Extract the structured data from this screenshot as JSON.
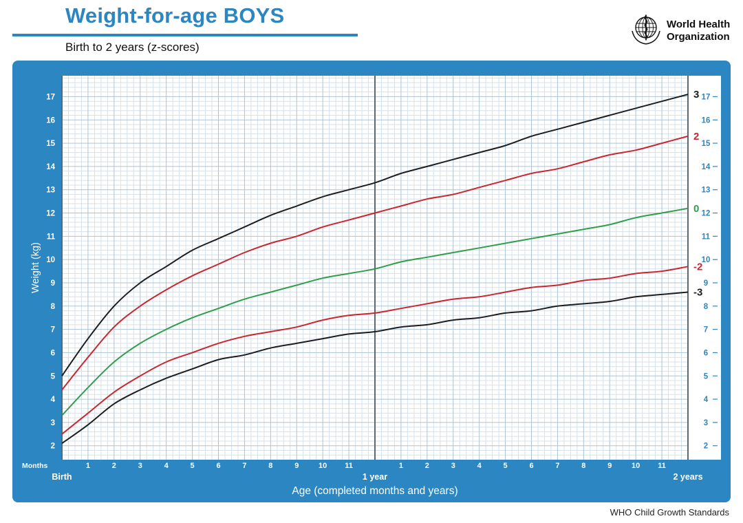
{
  "header": {
    "title": "Weight-for-age BOYS",
    "subtitle": "Birth to 2 years (z-scores)",
    "logo": {
      "line1": "World Health",
      "line2": "Organization"
    }
  },
  "footer": {
    "credit": "WHO Child Growth Standards"
  },
  "chart_data": {
    "type": "line",
    "title": "Weight-for-age BOYS",
    "subtitle": "Birth to 2 years (z-scores)",
    "xlabel": "Age (completed months and years)",
    "ylabel": "Weight (kg)",
    "x_unit_label": "Months",
    "xlim": [
      0,
      24
    ],
    "ylim": [
      1.4,
      17.9
    ],
    "x_months": [
      0,
      1,
      2,
      3,
      4,
      5,
      6,
      7,
      8,
      9,
      10,
      11,
      12,
      13,
      14,
      15,
      16,
      17,
      18,
      19,
      20,
      21,
      22,
      23,
      24
    ],
    "x_tick_labels": [
      "Birth",
      "1",
      "2",
      "3",
      "4",
      "5",
      "6",
      "7",
      "8",
      "9",
      "10",
      "11",
      "1 year",
      "1",
      "2",
      "3",
      "4",
      "5",
      "6",
      "7",
      "8",
      "9",
      "10",
      "11",
      "2 years"
    ],
    "x_major_labels": [
      {
        "month": 0,
        "label": "Birth"
      },
      {
        "month": 12,
        "label": "1 year"
      },
      {
        "month": 24,
        "label": "2 years"
      }
    ],
    "y_ticks": [
      2,
      3,
      4,
      5,
      6,
      7,
      8,
      9,
      10,
      11,
      12,
      13,
      14,
      15,
      16,
      17
    ],
    "grid": {
      "y_minor_step": 0.2,
      "y_major_step": 1,
      "x_minor_step": 0.25,
      "x_major_step": 1,
      "dark_vertical_months": [
        0,
        12,
        24
      ]
    },
    "legend_position": "right-curve-ends",
    "series": [
      {
        "name": "3",
        "zscore": 3,
        "color": "#1d1d1f",
        "values": [
          5.0,
          6.6,
          8.0,
          9.0,
          9.7,
          10.4,
          10.9,
          11.4,
          11.9,
          12.3,
          12.7,
          13.0,
          13.3,
          13.7,
          14.0,
          14.3,
          14.6,
          14.9,
          15.3,
          15.6,
          15.9,
          16.2,
          16.5,
          16.8,
          17.1
        ]
      },
      {
        "name": "2",
        "zscore": 2,
        "color": "#c9262e",
        "values": [
          4.4,
          5.8,
          7.1,
          8.0,
          8.7,
          9.3,
          9.8,
          10.3,
          10.7,
          11.0,
          11.4,
          11.7,
          12.0,
          12.3,
          12.6,
          12.8,
          13.1,
          13.4,
          13.7,
          13.9,
          14.2,
          14.5,
          14.7,
          15.0,
          15.3
        ]
      },
      {
        "name": "0",
        "zscore": 0,
        "color": "#2f9e49",
        "values": [
          3.3,
          4.5,
          5.6,
          6.4,
          7.0,
          7.5,
          7.9,
          8.3,
          8.6,
          8.9,
          9.2,
          9.4,
          9.6,
          9.9,
          10.1,
          10.3,
          10.5,
          10.7,
          10.9,
          11.1,
          11.3,
          11.5,
          11.8,
          12.0,
          12.2
        ]
      },
      {
        "name": "-2",
        "zscore": -2,
        "color": "#c9262e",
        "values": [
          2.5,
          3.4,
          4.3,
          5.0,
          5.6,
          6.0,
          6.4,
          6.7,
          6.9,
          7.1,
          7.4,
          7.6,
          7.7,
          7.9,
          8.1,
          8.3,
          8.4,
          8.6,
          8.8,
          8.9,
          9.1,
          9.2,
          9.4,
          9.5,
          9.7
        ]
      },
      {
        "name": "-3",
        "zscore": -3,
        "color": "#1d1d1f",
        "values": [
          2.1,
          2.9,
          3.8,
          4.4,
          4.9,
          5.3,
          5.7,
          5.9,
          6.2,
          6.4,
          6.6,
          6.8,
          6.9,
          7.1,
          7.2,
          7.4,
          7.5,
          7.7,
          7.8,
          8.0,
          8.1,
          8.2,
          8.4,
          8.5,
          8.6
        ]
      }
    ],
    "colors": {
      "accent": "#2b86c1",
      "panel": "#2b86c1",
      "plot_background": "#ffffff",
      "grid_minor": "#d6e1ea",
      "grid_major": "#abc4d6",
      "axis_dark": "#5d676d",
      "tick_text_on_panel": "#ffffff",
      "right_tick_text": "#2b86c1",
      "black_curve": "#1d1d1f",
      "red_curve": "#c9262e",
      "green_curve": "#2f9e49"
    }
  }
}
